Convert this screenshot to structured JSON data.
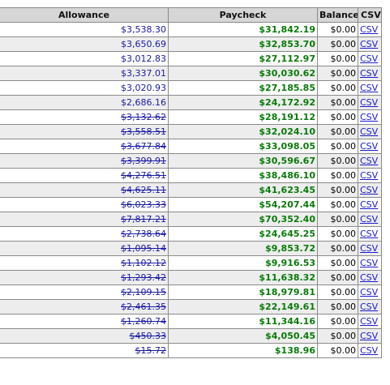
{
  "headers": {
    "allowance": "Allowance",
    "paycheck": "Paycheck",
    "balance": "Balance",
    "csv": "CSV"
  },
  "rows": [
    {
      "allowance": "$3,538.30",
      "allowance_struck": false,
      "paycheck": "$31,842.19",
      "balance": "$0.00",
      "csv": "CSV"
    },
    {
      "allowance": "$3,650.69",
      "allowance_struck": false,
      "paycheck": "$32,853.70",
      "balance": "$0.00",
      "csv": "CSV"
    },
    {
      "allowance": "$3,012.83",
      "allowance_struck": false,
      "paycheck": "$27,112.97",
      "balance": "$0.00",
      "csv": "CSV"
    },
    {
      "allowance": "$3,337.01",
      "allowance_struck": false,
      "paycheck": "$30,030.62",
      "balance": "$0.00",
      "csv": "CSV"
    },
    {
      "allowance": "$3,020.93",
      "allowance_struck": false,
      "paycheck": "$27,185.85",
      "balance": "$0.00",
      "csv": "CSV"
    },
    {
      "allowance": "$2,686.16",
      "allowance_struck": false,
      "paycheck": "$24,172.92",
      "balance": "$0.00",
      "csv": "CSV"
    },
    {
      "allowance": "$3,132.62",
      "allowance_struck": true,
      "paycheck": "$28,191.12",
      "balance": "$0.00",
      "csv": "CSV"
    },
    {
      "allowance": "$3,558.51",
      "allowance_struck": true,
      "paycheck": "$32,024.10",
      "balance": "$0.00",
      "csv": "CSV"
    },
    {
      "allowance": "$3,677.84",
      "allowance_struck": true,
      "paycheck": "$33,098.05",
      "balance": "$0.00",
      "csv": "CSV"
    },
    {
      "allowance": "$3,399.91",
      "allowance_struck": true,
      "paycheck": "$30,596.67",
      "balance": "$0.00",
      "csv": "CSV"
    },
    {
      "allowance": "$4,276.51",
      "allowance_struck": true,
      "paycheck": "$38,486.10",
      "balance": "$0.00",
      "csv": "CSV"
    },
    {
      "allowance": "$4,625.11",
      "allowance_struck": true,
      "paycheck": "$41,623.45",
      "balance": "$0.00",
      "csv": "CSV"
    },
    {
      "allowance": "$6,023.33",
      "allowance_struck": true,
      "paycheck": "$54,207.44",
      "balance": "$0.00",
      "csv": "CSV"
    },
    {
      "allowance": "$7,817.21",
      "allowance_struck": true,
      "paycheck": "$70,352.40",
      "balance": "$0.00",
      "csv": "CSV"
    },
    {
      "allowance": "$2,738.64",
      "allowance_struck": true,
      "paycheck": "$24,645.25",
      "balance": "$0.00",
      "csv": "CSV"
    },
    {
      "allowance": "$1,095.14",
      "allowance_struck": true,
      "paycheck": "$9,853.72",
      "balance": "$0.00",
      "csv": "CSV"
    },
    {
      "allowance": "$1,102.12",
      "allowance_struck": true,
      "paycheck": "$9,916.53",
      "balance": "$0.00",
      "csv": "CSV"
    },
    {
      "allowance": "$1,293.42",
      "allowance_struck": true,
      "paycheck": "$11,638.32",
      "balance": "$0.00",
      "csv": "CSV"
    },
    {
      "allowance": "$2,109.15",
      "allowance_struck": true,
      "paycheck": "$18,979.81",
      "balance": "$0.00",
      "csv": "CSV"
    },
    {
      "allowance": "$2,461.35",
      "allowance_struck": true,
      "paycheck": "$22,149.61",
      "balance": "$0.00",
      "csv": "CSV"
    },
    {
      "allowance": "$1,260.74",
      "allowance_struck": true,
      "paycheck": "$11,344.16",
      "balance": "$0.00",
      "csv": "CSV"
    },
    {
      "allowance": "$450.33",
      "allowance_struck": true,
      "paycheck": "$4,050.45",
      "balance": "$0.00",
      "csv": "CSV"
    },
    {
      "allowance": "$15.72",
      "allowance_struck": true,
      "paycheck": "$138.96",
      "balance": "$0.00",
      "csv": "CSV"
    }
  ],
  "colors": {
    "allowance_text": "#1a1aa6",
    "paycheck_text": "#0a7a0a",
    "link": "#1a1acc",
    "header_bg": "#d6d6d6",
    "row_alt_bg": "#ededed"
  }
}
